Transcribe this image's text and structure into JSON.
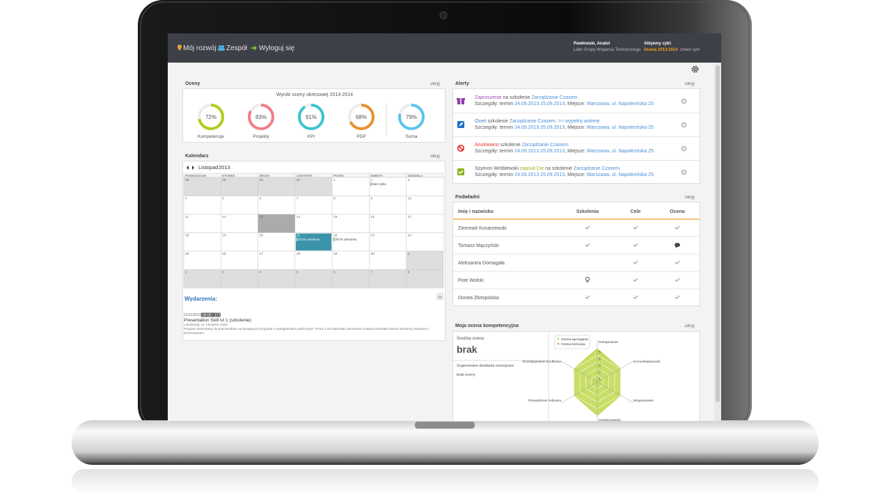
{
  "nav": {
    "items": [
      "Mój rozwój",
      "Zespół",
      "Wyloguj się"
    ],
    "user_name": "Pawłowski, Anatol",
    "user_role": "Lider Grupy Wsparcia Technicznego",
    "cycle_label": "Aktywny cykl:",
    "cycle": "Ocena 2013-2014",
    "cycle_change": "zmień cykl"
  },
  "scores": {
    "title": "Oceny",
    "hide": "ukryj",
    "subtitle": "Wyniki oceny okresowej 2013-2014",
    "labels": [
      "Kompetencje",
      "Projekty",
      "KPI",
      "PDP",
      "Suma"
    ],
    "values": [
      72,
      83,
      91,
      68,
      79
    ],
    "value_labels": [
      "72%",
      "83%",
      "91%",
      "68%",
      "79%"
    ],
    "colors": [
      "#b3cb1a",
      "#f27d84",
      "#3cc3cf",
      "#e8922e",
      "#5cc2ee"
    ]
  },
  "calendar": {
    "title": "Kalendarz",
    "hide": "ukryj",
    "month": "Listopad",
    "year": "2013",
    "weekdays": [
      "PONIEDZIAŁEK",
      "WTOREK",
      "ŚRODA",
      "CZWARTEK",
      "PIĄTEK",
      "SOBOTA",
      "NIEDZIELA"
    ],
    "weeks": [
      [
        28,
        29,
        30,
        31,
        1,
        {
          "day": 2,
          "event": "start cyklu"
        },
        3
      ],
      [
        4,
        5,
        6,
        7,
        8,
        9,
        10
      ],
      [
        11,
        12,
        {
          "day": 13,
          "selected": true
        },
        14,
        15,
        16,
        17
      ],
      [
        18,
        19,
        20,
        {
          "day": 21,
          "event": "09:00 szkolenie",
          "active": true
        },
        {
          "day": 22,
          "event": "08:00 szkolenie"
        },
        23,
        24
      ],
      [
        25,
        26,
        27,
        28,
        29,
        30,
        1
      ],
      [
        2,
        3,
        4,
        5,
        6,
        7,
        8
      ]
    ]
  },
  "events": {
    "title": "Wydarzenia:",
    "date": "21/11/2013",
    "time": "09:00 - 17:00",
    "name": "Presentation Skill lvl 1 (szkolenie)",
    "location": "Lokalizacja: Ul. Chmielna 10/23",
    "description": "Program skierowany do pracowników zaczynających przygodę z wystąpieniami publicznymi. Przez 2 dni warsztatu poruszone zostaną wszystkie istotne elementy związane z prezentacjami."
  },
  "alerts": {
    "title": "Alerty",
    "hide": "ukryj",
    "items": [
      {
        "icon": "gift",
        "lines": [
          [
            {
              "text": "Zaproszenie",
              "color": "#9b4fb3"
            },
            {
              "text": "na szkolenie"
            },
            {
              "text": "Zarządzanie Czasem.",
              "color": "#4a90d9"
            }
          ],
          [
            {
              "text": "Szczegóły: termin"
            },
            {
              "text": "24.09.2013 25.09.2013",
              "color": "#4a90d9"
            },
            {
              "text": ", Miejsce:"
            },
            {
              "text": "Warszawa, ul. Napoleońska 25",
              "color": "#4a90d9"
            }
          ]
        ]
      },
      {
        "icon": "pencil",
        "lines": [
          [
            {
              "text": "Oceń",
              "color": "#2d7bd0"
            },
            {
              "text": "szkolenie"
            },
            {
              "text": "Zarządzanie Czasem.",
              "color": "#4a90d9"
            },
            {
              "text": ">> wypełnij ankietę",
              "color": "#4a90d9"
            }
          ],
          [
            {
              "text": "Szczegóły: termin"
            },
            {
              "text": "24.09.2013 25.09.2013",
              "color": "#4a90d9"
            },
            {
              "text": ", Miejsce:"
            },
            {
              "text": "Warszawa, ul. Napoleońska 25",
              "color": "#4a90d9"
            }
          ]
        ]
      },
      {
        "icon": "cancel",
        "lines": [
          [
            {
              "text": "Anulowano",
              "color": "#e2312d"
            },
            {
              "text": "szkolenie"
            },
            {
              "text": "Zarządzanie Czasem.",
              "color": "#4a90d9"
            }
          ],
          [
            {
              "text": "Szczegóły: termin"
            },
            {
              "text": "24.09.2013 25.09.2013",
              "color": "#4a90d9"
            },
            {
              "text": ", Miejsce:"
            },
            {
              "text": "Warszawa, ul. Napoleońska 25",
              "color": "#4a90d9"
            }
          ]
        ]
      },
      {
        "icon": "check",
        "lines": [
          [
            {
              "text": "Szymon Wróblewski"
            },
            {
              "text": "zapisał Cię",
              "color": "#9bb51c"
            },
            {
              "text": "na szkolenie"
            },
            {
              "text": "Zarządzanie Czasem.",
              "color": "#4a90d9"
            }
          ],
          [
            {
              "text": "Szczegóły: termin"
            },
            {
              "text": "24.09.2013 25.09.2013",
              "color": "#4a90d9"
            },
            {
              "text": ", Miejsce:"
            },
            {
              "text": "Warszawa, ul. Napoleońska 25",
              "color": "#4a90d9"
            }
          ]
        ]
      }
    ]
  },
  "team": {
    "title": "Podwładni",
    "hide": "ukryj",
    "columns": [
      "Imię i nazwisko",
      "Szkolenia",
      "Cele",
      "Ocena"
    ],
    "rows": [
      "Ziemowit Konarzewski",
      "Tomasz Mączyński",
      "Aleksantra Domagała",
      "Piotr Wolski",
      "Dorota Złotopolska"
    ]
  },
  "competence": {
    "title": "Moja ocena kompetencyjna",
    "hide": "ukryj",
    "avg_label": "Średnia ocena:",
    "avg": "brak",
    "actions_label": "Sugerowane działania rozwojowe:",
    "actions": "brak oceny",
    "radar": {
      "type": "radar",
      "categories": [
        "Delegowanie",
        "Komunikatywność",
        "Motywowanie",
        "Organizowanie",
        "Prowadzenie zebrania",
        "Rozwiązywanie konfliktów"
      ],
      "rlim": [
        0,
        5
      ],
      "rticks": [
        1,
        2,
        3,
        4,
        5
      ],
      "series": [
        {
          "name": "Ocena wymagana",
          "color": "#b5d334",
          "values": [
            5,
            4,
            4,
            5,
            4,
            4
          ]
        },
        {
          "name": "Ocena końcowa",
          "color": "#e8922e",
          "values": [
            null,
            null,
            null,
            null,
            null,
            null
          ]
        }
      ]
    }
  }
}
